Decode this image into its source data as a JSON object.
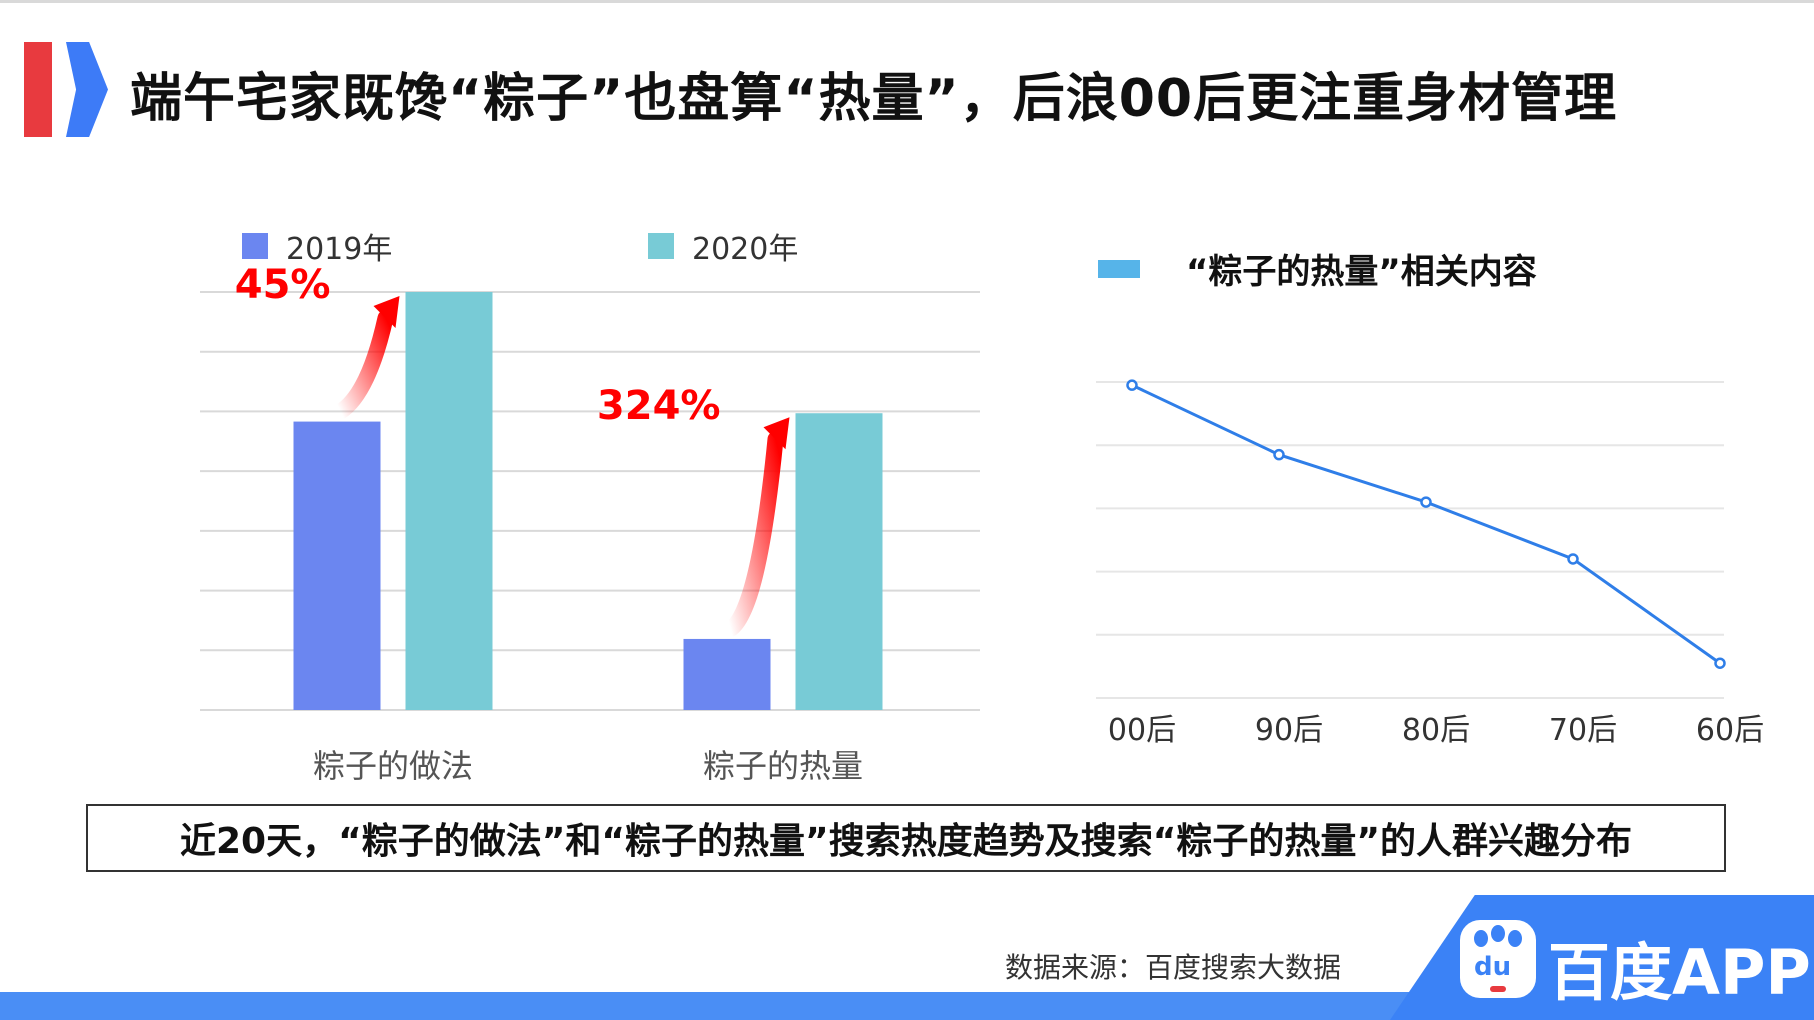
{
  "title": "端午宅家既馋“粽子”也盘算“热量”，后浪00后更注重身材管理",
  "colors": {
    "red": "#e83a3f",
    "brand_blue": "#3b82f6",
    "series_2019": "#6b86f0",
    "series_2020": "#78cbd6",
    "line": "#2f7ee8",
    "line_legend": "#56b4e9",
    "annotation": "#ff0000",
    "grid": "#d9d9d9"
  },
  "chart_data": [
    {
      "type": "bar",
      "categories": [
        "粽子的做法",
        "粽子的热量"
      ],
      "series": [
        {
          "name": "2019年",
          "values": [
            69,
            17
          ]
        },
        {
          "name": "2020年",
          "values": [
            100,
            71
          ]
        }
      ],
      "ylim": [
        0,
        100
      ],
      "grid": true,
      "legend": "top",
      "annotations": [
        {
          "category": "粽子的做法",
          "text": "45%",
          "icon": "up-arrow-icon"
        },
        {
          "category": "粽子的热量",
          "text": "324%",
          "icon": "up-arrow-icon"
        }
      ]
    },
    {
      "type": "line",
      "categories": [
        "00后",
        "90后",
        "80后",
        "70后",
        "60后"
      ],
      "series": [
        {
          "name": "“粽子的热量”相关内容",
          "values": [
            99,
            77,
            62,
            44,
            11
          ]
        }
      ],
      "ylim": [
        0,
        100
      ],
      "grid": true,
      "legend": "top-left"
    }
  ],
  "caption": "近20天，“粽子的做法”和“粽子的热量”搜索热度趋势及搜索“粽子的热量”的人群兴趣分布",
  "source": "数据来源：百度搜索大数据",
  "brand": {
    "icon": "baidu-paw-icon",
    "logo_text": "du",
    "name": "百度APP"
  }
}
